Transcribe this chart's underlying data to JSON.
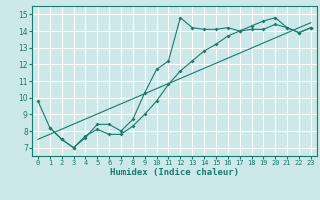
{
  "bg_color": "#cce8e8",
  "grid_color": "#ffffff",
  "line_color": "#1a7a6e",
  "xlabel": "Humidex (Indice chaleur)",
  "ylim": [
    6.5,
    15.5
  ],
  "xlim": [
    -0.5,
    23.5
  ],
  "yticks": [
    7,
    8,
    9,
    10,
    11,
    12,
    13,
    14,
    15
  ],
  "xticks": [
    0,
    1,
    2,
    3,
    4,
    5,
    6,
    7,
    8,
    9,
    10,
    11,
    12,
    13,
    14,
    15,
    16,
    17,
    18,
    19,
    20,
    21,
    22,
    23
  ],
  "curve1_x": [
    0,
    1,
    2,
    3,
    4,
    5,
    6,
    7,
    8,
    9,
    10,
    11,
    12,
    13,
    14,
    15,
    16,
    17,
    18,
    19,
    20,
    21,
    22,
    23
  ],
  "curve1_y": [
    9.8,
    8.2,
    7.5,
    7.0,
    7.6,
    8.4,
    8.4,
    8.0,
    8.7,
    10.3,
    11.7,
    12.2,
    14.8,
    14.2,
    14.1,
    14.1,
    14.2,
    14.0,
    14.1,
    14.1,
    14.4,
    14.2,
    13.9,
    14.2
  ],
  "curve2_x": [
    1,
    2,
    3,
    4,
    5,
    6,
    7,
    8,
    9,
    10,
    11,
    12,
    13,
    14,
    15,
    16,
    17,
    18,
    19,
    20,
    21,
    22,
    23
  ],
  "curve2_y": [
    8.2,
    7.5,
    7.0,
    7.7,
    8.1,
    7.8,
    7.8,
    8.3,
    9.0,
    9.8,
    10.8,
    11.6,
    12.2,
    12.8,
    13.2,
    13.7,
    14.0,
    14.3,
    14.6,
    14.8,
    14.2,
    13.9,
    14.2
  ],
  "line3_x": [
    0,
    23
  ],
  "line3_y": [
    7.5,
    14.5
  ]
}
